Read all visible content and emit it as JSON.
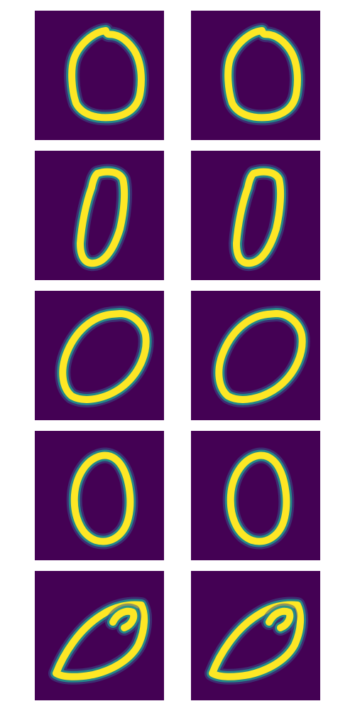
{
  "figure": {
    "layout": {
      "rows": 5,
      "cols": 2
    },
    "colors": {
      "background": "#440154",
      "stroke_core": "#fde725",
      "stroke_edge": "#21918c",
      "stroke_glow": "#3b528b",
      "page": "#ffffff"
    },
    "panels": [
      {
        "row": 0,
        "col": 0,
        "shape": "zero-rounded",
        "icon": "handwritten-zero-icon"
      },
      {
        "row": 0,
        "col": 1,
        "shape": "zero-rounded",
        "icon": "handwritten-zero-icon"
      },
      {
        "row": 1,
        "col": 0,
        "shape": "zero-narrow-slanted",
        "icon": "handwritten-zero-icon"
      },
      {
        "row": 1,
        "col": 1,
        "shape": "zero-narrow-slanted",
        "icon": "handwritten-zero-icon"
      },
      {
        "row": 2,
        "col": 0,
        "shape": "zero-wide-tilted",
        "icon": "handwritten-zero-icon"
      },
      {
        "row": 2,
        "col": 1,
        "shape": "zero-wide-tilted",
        "icon": "handwritten-zero-icon"
      },
      {
        "row": 3,
        "col": 0,
        "shape": "zero-upright-oval",
        "icon": "handwritten-zero-icon"
      },
      {
        "row": 3,
        "col": 1,
        "shape": "zero-upright-oval",
        "icon": "handwritten-zero-icon"
      },
      {
        "row": 4,
        "col": 0,
        "shape": "zero-leaf-with-hook",
        "icon": "handwritten-zero-icon"
      },
      {
        "row": 4,
        "col": 1,
        "shape": "zero-leaf-with-hook",
        "icon": "handwritten-zero-icon"
      }
    ]
  }
}
